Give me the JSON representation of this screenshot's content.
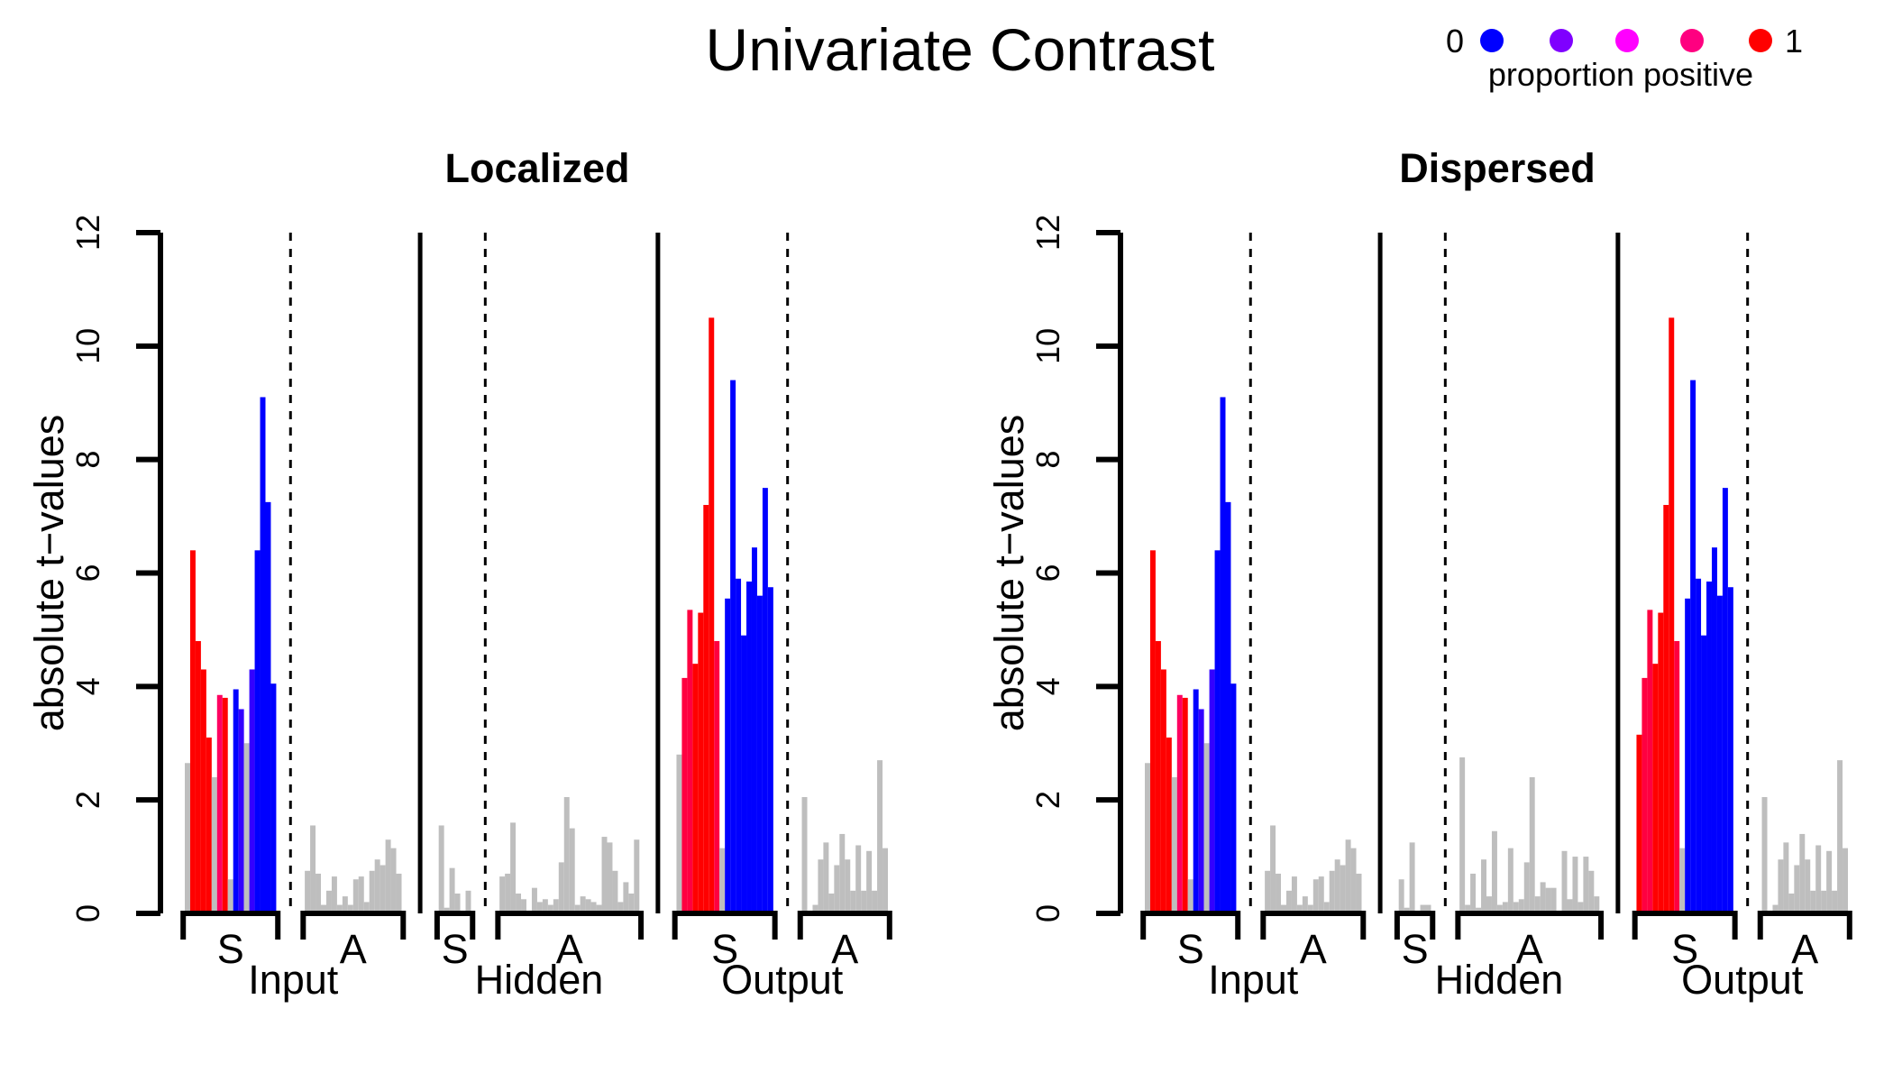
{
  "figure": {
    "title": "Univariate Contrast",
    "legend": {
      "label": "proportion positive",
      "min_label": "0",
      "max_label": "1",
      "colors": [
        "#0000ff",
        "#7f00ff",
        "#ff00ff",
        "#ff0080",
        "#ff0000"
      ]
    }
  },
  "chart_data": [
    {
      "type": "bar",
      "title": "Localized",
      "ylabel": "absolute t−values",
      "ylim": [
        0,
        12
      ],
      "yticks": [
        "0",
        "2",
        "4",
        "6",
        "8",
        "10",
        "12"
      ],
      "groups": [
        {
          "name": "Input",
          "subgroups": [
            {
              "label": "S",
              "values": [
                2.65,
                6.4,
                4.8,
                4.3,
                3.1,
                2.4,
                3.85,
                3.8,
                0.6,
                3.95,
                3.6,
                3.0,
                4.3,
                6.4,
                9.1,
                7.25,
                4.05
              ],
              "colors": [
                "#bebebe",
                "#ff0000",
                "#ff0000",
                "#ff0000",
                "#ff0000",
                "#bebebe",
                "#ff0060",
                "#ff0000",
                "#bebebe",
                "#0000ff",
                "#3300ff",
                "#bebebe",
                "#3300ff",
                "#0000ff",
                "#0000ff",
                "#0000ff",
                "#0000ff"
              ]
            },
            {
              "label": "A",
              "values": [
                0.75,
                1.55,
                0.7,
                0.15,
                0.4,
                0.65,
                0.15,
                0.3,
                0.15,
                0.6,
                0.65,
                0.2,
                0.75,
                0.95,
                0.85,
                1.3,
                1.15,
                0.7
              ],
              "colors": [
                "#bebebe",
                "#bebebe",
                "#bebebe",
                "#bebebe",
                "#bebebe",
                "#bebebe",
                "#bebebe",
                "#bebebe",
                "#bebebe",
                "#bebebe",
                "#bebebe",
                "#bebebe",
                "#bebebe",
                "#bebebe",
                "#bebebe",
                "#bebebe",
                "#bebebe",
                "#bebebe"
              ]
            }
          ]
        },
        {
          "name": "Hidden",
          "subgroups": [
            {
              "label": "S",
              "values": [
                1.55,
                0.1,
                0.8,
                0.35,
                0.05,
                0.4
              ],
              "colors": [
                "#bebebe",
                "#bebebe",
                "#bebebe",
                "#bebebe",
                "#bebebe",
                "#bebebe"
              ]
            },
            {
              "label": "A",
              "values": [
                0.65,
                0.7,
                1.6,
                0.35,
                0.25,
                0.05,
                0.45,
                0.2,
                0.25,
                0.15,
                0.25,
                0.9,
                2.05,
                1.5,
                0.15,
                0.3,
                0.25,
                0.2,
                0.15,
                1.35,
                1.25,
                0.75,
                0.2,
                0.55,
                0.35,
                1.3
              ],
              "colors": [
                "#bebebe",
                "#bebebe",
                "#bebebe",
                "#bebebe",
                "#bebebe",
                "#bebebe",
                "#bebebe",
                "#bebebe",
                "#bebebe",
                "#bebebe",
                "#bebebe",
                "#bebebe",
                "#bebebe",
                "#bebebe",
                "#bebebe",
                "#bebebe",
                "#bebebe",
                "#bebebe",
                "#bebebe",
                "#bebebe",
                "#bebebe",
                "#bebebe",
                "#bebebe",
                "#bebebe",
                "#bebebe",
                "#bebebe"
              ]
            }
          ]
        },
        {
          "name": "Output",
          "subgroups": [
            {
              "label": "S",
              "values": [
                2.8,
                4.15,
                5.35,
                4.4,
                5.3,
                7.2,
                10.5,
                4.8,
                1.15,
                5.55,
                9.4,
                5.9,
                4.9,
                5.85,
                6.45,
                5.6,
                7.5,
                5.75
              ],
              "colors": [
                "#bebebe",
                "#ff0040",
                "#ff0040",
                "#ff0000",
                "#ff0000",
                "#ff0000",
                "#ff0000",
                "#ff0040",
                "#bebebe",
                "#0000ff",
                "#0000ff",
                "#0000ff",
                "#0000ff",
                "#0000ff",
                "#0000ff",
                "#0000ff",
                "#0000ff",
                "#0000ff"
              ]
            },
            {
              "label": "A",
              "values": [
                2.05,
                0.05,
                0.15,
                0.95,
                1.25,
                0.35,
                0.85,
                1.4,
                0.95,
                0.4,
                1.2,
                0.4,
                1.1,
                0.4,
                2.7,
                1.15
              ],
              "colors": [
                "#bebebe",
                "#bebebe",
                "#bebebe",
                "#bebebe",
                "#bebebe",
                "#bebebe",
                "#bebebe",
                "#bebebe",
                "#bebebe",
                "#bebebe",
                "#bebebe",
                "#bebebe",
                "#bebebe",
                "#bebebe",
                "#bebebe",
                "#bebebe"
              ]
            }
          ]
        }
      ]
    },
    {
      "type": "bar",
      "title": "Dispersed",
      "ylabel": "absolute t−values",
      "ylim": [
        0,
        12
      ],
      "yticks": [
        "0",
        "2",
        "4",
        "6",
        "8",
        "10",
        "12"
      ],
      "groups": [
        {
          "name": "Input",
          "subgroups": [
            {
              "label": "S",
              "values": [
                2.65,
                6.4,
                4.8,
                4.3,
                3.1,
                2.4,
                3.85,
                3.8,
                0.6,
                3.95,
                3.6,
                3.0,
                4.3,
                6.4,
                9.1,
                7.25,
                4.05
              ],
              "colors": [
                "#bebebe",
                "#ff0000",
                "#ff0000",
                "#ff0000",
                "#ff0000",
                "#bebebe",
                "#ff0060",
                "#ff0000",
                "#bebebe",
                "#0000ff",
                "#3300ff",
                "#bebebe",
                "#3300ff",
                "#0000ff",
                "#0000ff",
                "#0000ff",
                "#0000ff"
              ]
            },
            {
              "label": "A",
              "values": [
                0.75,
                1.55,
                0.7,
                0.15,
                0.4,
                0.65,
                0.15,
                0.3,
                0.15,
                0.6,
                0.65,
                0.2,
                0.75,
                0.95,
                0.85,
                1.3,
                1.15,
                0.7
              ],
              "colors": [
                "#bebebe",
                "#bebebe",
                "#bebebe",
                "#bebebe",
                "#bebebe",
                "#bebebe",
                "#bebebe",
                "#bebebe",
                "#bebebe",
                "#bebebe",
                "#bebebe",
                "#bebebe",
                "#bebebe",
                "#bebebe",
                "#bebebe",
                "#bebebe",
                "#bebebe",
                "#bebebe"
              ]
            }
          ]
        },
        {
          "name": "Hidden",
          "subgroups": [
            {
              "label": "S",
              "values": [
                0.6,
                0.1,
                1.25,
                0.05,
                0.15,
                0.15
              ],
              "colors": [
                "#bebebe",
                "#bebebe",
                "#bebebe",
                "#bebebe",
                "#bebebe",
                "#bebebe"
              ]
            },
            {
              "label": "A",
              "values": [
                2.75,
                0.15,
                0.7,
                0.1,
                0.95,
                0.3,
                1.45,
                0.15,
                0.2,
                1.15,
                0.2,
                0.25,
                0.9,
                2.4,
                0.3,
                0.55,
                0.45,
                0.45,
                0.05,
                1.1,
                0.25,
                1.0,
                0.2,
                1.0,
                0.75,
                0.3
              ],
              "colors": [
                "#bebebe",
                "#bebebe",
                "#bebebe",
                "#bebebe",
                "#bebebe",
                "#bebebe",
                "#bebebe",
                "#bebebe",
                "#bebebe",
                "#bebebe",
                "#bebebe",
                "#bebebe",
                "#bebebe",
                "#bebebe",
                "#bebebe",
                "#bebebe",
                "#bebebe",
                "#bebebe",
                "#bebebe",
                "#bebebe",
                "#bebebe",
                "#bebebe",
                "#bebebe",
                "#bebebe",
                "#bebebe",
                "#bebebe"
              ]
            }
          ]
        },
        {
          "name": "Output",
          "subgroups": [
            {
              "label": "S",
              "values": [
                3.15,
                4.15,
                5.35,
                4.4,
                5.3,
                7.2,
                10.5,
                4.8,
                1.15,
                5.55,
                9.4,
                5.9,
                4.9,
                5.85,
                6.45,
                5.6,
                7.5,
                5.75
              ],
              "colors": [
                "#ff0000",
                "#ff0040",
                "#ff0040",
                "#ff0000",
                "#ff0000",
                "#ff0000",
                "#ff0000",
                "#ff0040",
                "#bebebe",
                "#0000ff",
                "#0000ff",
                "#0000ff",
                "#0000ff",
                "#0000ff",
                "#0000ff",
                "#0000ff",
                "#0000ff",
                "#0000ff"
              ]
            },
            {
              "label": "A",
              "values": [
                2.05,
                0.05,
                0.15,
                0.95,
                1.25,
                0.35,
                0.85,
                1.4,
                0.95,
                0.4,
                1.2,
                0.4,
                1.1,
                0.4,
                2.7,
                1.15
              ],
              "colors": [
                "#bebebe",
                "#bebebe",
                "#bebebe",
                "#bebebe",
                "#bebebe",
                "#bebebe",
                "#bebebe",
                "#bebebe",
                "#bebebe",
                "#bebebe",
                "#bebebe",
                "#bebebe",
                "#bebebe",
                "#bebebe",
                "#bebebe",
                "#bebebe"
              ]
            }
          ]
        }
      ]
    }
  ]
}
